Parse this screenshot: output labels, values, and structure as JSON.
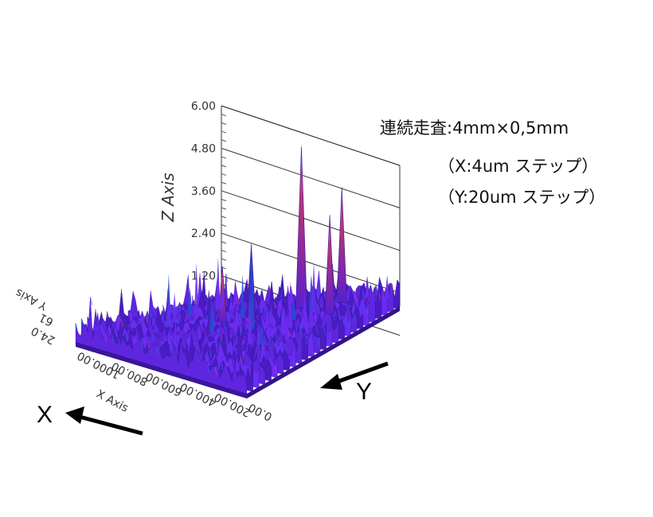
{
  "annotations": {
    "scan": "連続走査:4mm×0,5mm",
    "x_step": "（X:4um ステップ）",
    "y_step": "（Y:20um ステップ）"
  },
  "direction_labels": {
    "x": "X",
    "y": "Y"
  },
  "colors": {
    "surface_low": "#5a1fd0",
    "surface_mid": "#7a2cff",
    "surface_high": "#c0357a",
    "spike_blue": "#2a3fc8"
  },
  "chart_data": {
    "type": "surface",
    "zlabel": "Z Axis",
    "xlabel": "X Axis",
    "ylabel": "Y Axis",
    "zlim": [
      0,
      6.0
    ],
    "z_ticks": [
      "6.00",
      "4.80",
      "3.60",
      "2.40",
      "1.20"
    ],
    "x_ticks": [
      "0.00",
      "200.00",
      "400.00",
      "600.00",
      "800.00",
      "1000.00"
    ],
    "y_ticks_visible": [
      "24.0",
      "61"
    ],
    "grid": true,
    "surface": "dense noisy surface with baseline roughness ~0.6, several sharp spikes",
    "peaks": [
      {
        "x": 600,
        "z": 5.1
      },
      {
        "x": 760,
        "z": 3.7
      },
      {
        "x": 820,
        "z": 3.3
      },
      {
        "x": 460,
        "z": 2.6
      },
      {
        "x": 380,
        "z": 2.1
      }
    ]
  }
}
